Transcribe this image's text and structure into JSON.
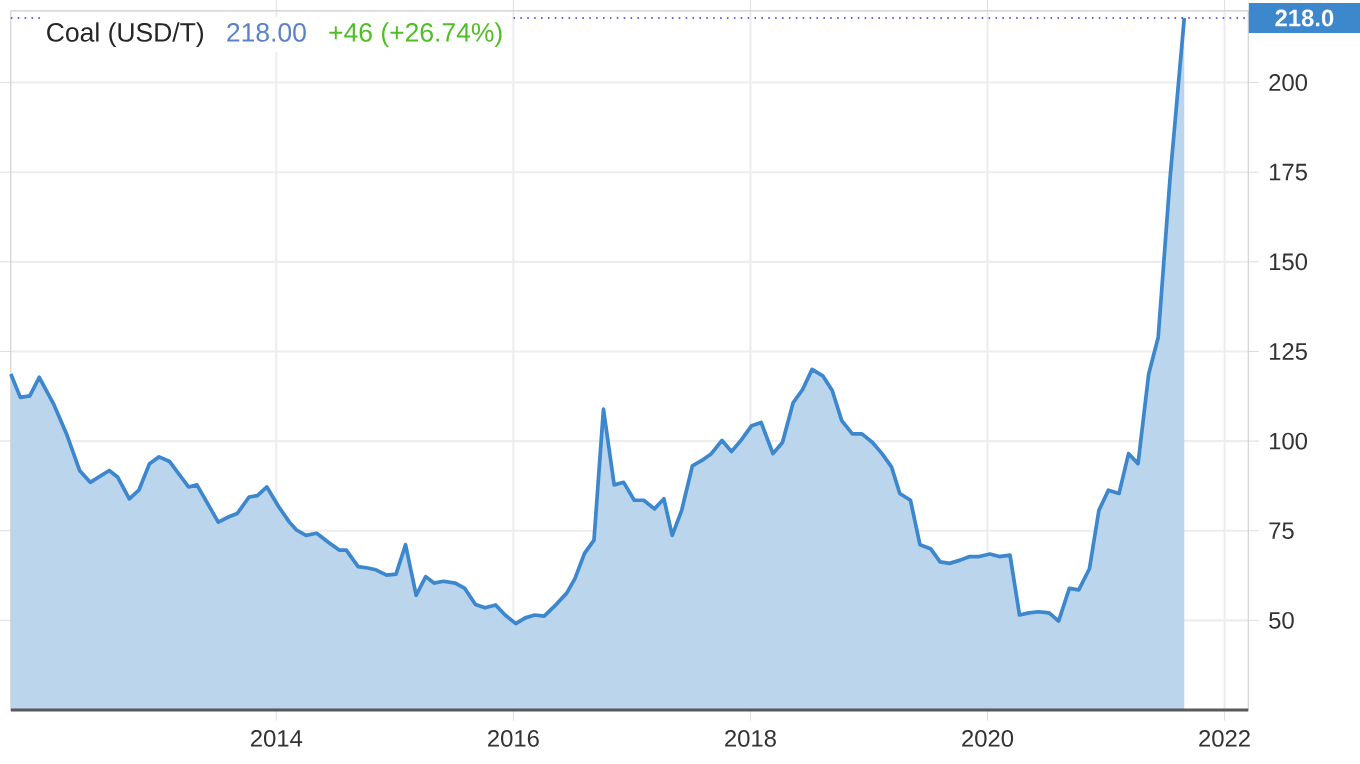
{
  "chart_data": {
    "type": "area",
    "title": "Coal (USD/T)",
    "annotations": [
      "218.00",
      "+46 (+26.74%)"
    ],
    "x": [
      2011.76,
      2011.84,
      2011.92,
      2012.0,
      2012.12,
      2012.23,
      2012.34,
      2012.43,
      2012.59,
      2012.66,
      2012.76,
      2012.84,
      2012.93,
      2013.01,
      2013.1,
      2013.26,
      2013.33,
      2013.51,
      2013.6,
      2013.67,
      2013.77,
      2013.84,
      2013.92,
      2014.02,
      2014.11,
      2014.17,
      2014.25,
      2014.34,
      2014.45,
      2014.53,
      2014.59,
      2014.69,
      2014.77,
      2014.84,
      2014.93,
      2015.01,
      2015.09,
      2015.18,
      2015.26,
      2015.33,
      2015.41,
      2015.51,
      2015.59,
      2015.68,
      2015.76,
      2015.85,
      2015.93,
      2016.02,
      2016.1,
      2016.18,
      2016.26,
      2016.36,
      2016.45,
      2016.52,
      2016.6,
      2016.68,
      2016.76,
      2016.85,
      2016.93,
      2017.02,
      2017.1,
      2017.19,
      2017.27,
      2017.34,
      2017.42,
      2017.51,
      2017.59,
      2017.67,
      2017.76,
      2017.84,
      2017.92,
      2018.01,
      2018.09,
      2018.19,
      2018.27,
      2018.36,
      2018.44,
      2018.52,
      2018.61,
      2018.69,
      2018.77,
      2018.86,
      2018.94,
      2019.03,
      2019.11,
      2019.19,
      2019.26,
      2019.35,
      2019.43,
      2019.52,
      2019.6,
      2019.68,
      2019.77,
      2019.85,
      2019.93,
      2020.02,
      2020.1,
      2020.19,
      2020.27,
      2020.35,
      2020.43,
      2020.52,
      2020.6,
      2020.69,
      2020.77,
      2020.86,
      2020.94,
      2021.02,
      2021.11,
      2021.19,
      2021.27,
      2021.36,
      2021.44,
      2021.54,
      2021.66
    ],
    "series": [
      {
        "color": "#3c87cd",
        "values": [
          118.7,
          112.2,
          112.6,
          117.8,
          110.4,
          102,
          91.8,
          88.5,
          91.8,
          90,
          83.9,
          86.3,
          93.7,
          95.6,
          94.3,
          87.2,
          87.8,
          77.4,
          78.9,
          79.8,
          84.4,
          84.8,
          87.2,
          81.7,
          77.4,
          75.2,
          73.7,
          74.3,
          71.5,
          69.6,
          69.6,
          65,
          64.6,
          64.1,
          62.6,
          62.9,
          71.1,
          57,
          62.2,
          60.4,
          60.9,
          60.4,
          58.9,
          54.4,
          53.5,
          54.3,
          51.5,
          49.1,
          50.7,
          51.5,
          51.2,
          54.4,
          57.6,
          61.7,
          68.7,
          72.4,
          108.9,
          87.8,
          88.5,
          83.5,
          83.5,
          81.1,
          83.9,
          73.7,
          80.7,
          93.1,
          94.6,
          96.5,
          100.2,
          97.1,
          100.2,
          104.3,
          105.2,
          96.5,
          99.6,
          110.7,
          114.4,
          120,
          118.2,
          114.1,
          105.7,
          102,
          102,
          99.6,
          96.5,
          92.8,
          85.4,
          83.5,
          71.1,
          70,
          66.3,
          65.9,
          66.8,
          67.8,
          67.8,
          68.5,
          67.8,
          68.2,
          51.5,
          52.1,
          52.4,
          52.1,
          49.8,
          58.9,
          58.5,
          64.4,
          80.7,
          86.3,
          85.4,
          96.5,
          93.7,
          118.7,
          128.9,
          173.3,
          218
        ]
      }
    ],
    "xlim": [
      2011.76,
      2022.2
    ],
    "ylim": [
      25,
      220
    ],
    "xticks": [
      2014,
      2016,
      2018,
      2020,
      2022
    ],
    "yticks": [
      50,
      75,
      100,
      125,
      150,
      175,
      200
    ],
    "grid": true,
    "ref_lines": [
      {
        "axis": "y",
        "value": 218,
        "label": "218.0",
        "color": "#3333dd",
        "line_style": "dotted"
      }
    ]
  }
}
